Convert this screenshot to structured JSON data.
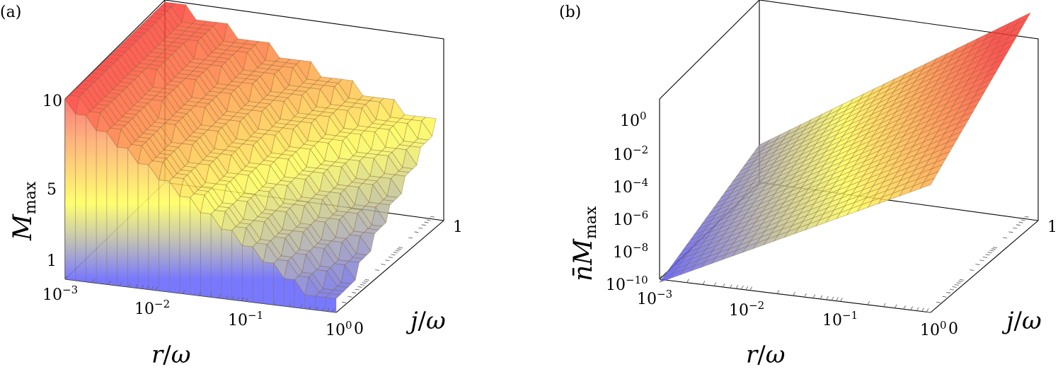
{
  "chart_data": [
    {
      "panel_label": "(a)",
      "type": "surface3d",
      "title": "",
      "xlabel_var": "r",
      "xlabel_den": "ω",
      "ylabel_var": "j",
      "ylabel_den": "ω",
      "zlabel_main": "M",
      "zlabel_sub": "max",
      "x_scale": "log",
      "y_scale": "log",
      "z_scale": "linear",
      "xlim": [
        0.001,
        1
      ],
      "ylim": [
        0.001,
        1
      ],
      "zlim": [
        0,
        13
      ],
      "x_tick_labels": [
        {
          "base": "10",
          "exp": "−3"
        },
        {
          "base": "10",
          "exp": "−2"
        },
        {
          "base": "10",
          "exp": "−1"
        },
        {
          "base": "10",
          "exp": "0"
        }
      ],
      "y_tick_label": "1",
      "y_tick_zero_label": "0",
      "z_tick_labels": [
        "1",
        "5",
        "10"
      ],
      "description_values": {
        "max_value": 13,
        "min_value": 1,
        "behaviour": "staircase; M_max decreases as r/ω increases and as j/ω decreases"
      },
      "colormap": [
        "#5050ff",
        "#ffff50",
        "#ff3030"
      ]
    },
    {
      "panel_label": "(b)",
      "type": "surface3d",
      "title": "",
      "xlabel_var": "r",
      "xlabel_den": "ω",
      "ylabel_var": "j",
      "ylabel_den": "ω",
      "zlabel_nbar": "n̄",
      "zlabel_main": "M",
      "zlabel_sub": "max",
      "x_scale": "log",
      "y_scale": "log",
      "z_scale": "log",
      "xlim": [
        0.001,
        1
      ],
      "ylim": [
        0.001,
        1
      ],
      "zlim": [
        1e-10,
        100
      ],
      "x_tick_labels": [
        {
          "base": "10",
          "exp": "−3"
        },
        {
          "base": "10",
          "exp": "−2"
        },
        {
          "base": "10",
          "exp": "−1"
        },
        {
          "base": "10",
          "exp": "0"
        }
      ],
      "y_tick_label": "1",
      "y_tick_zero_label": "0",
      "z_tick_labels": [
        {
          "base": "10",
          "exp": "−10"
        },
        {
          "base": "10",
          "exp": "−8"
        },
        {
          "base": "10",
          "exp": "−6"
        },
        {
          "base": "10",
          "exp": "−4"
        },
        {
          "base": "10",
          "exp": "−2"
        },
        {
          "base": "10",
          "exp": "0"
        }
      ],
      "description_values": {
        "min_value": 1e-09,
        "max_value": 10,
        "behaviour": "smooth rising surface; increases with r/ω and j/ω"
      },
      "colormap": [
        "#5050ff",
        "#ffff50",
        "#ff3030"
      ]
    }
  ]
}
